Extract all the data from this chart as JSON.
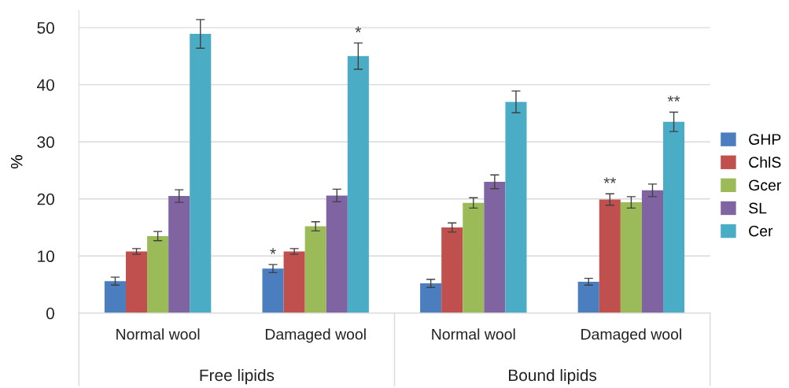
{
  "chart_data": {
    "type": "bar",
    "ylabel": "%",
    "categories": [
      "Normal wool",
      "Damaged wool",
      "Normal wool",
      "Damaged wool"
    ],
    "series": [
      {
        "name": "GHP",
        "color": "#4a7ebf",
        "values": [
          5.6,
          7.8,
          5.2,
          5.5
        ],
        "errors": [
          0.7,
          0.7,
          0.7,
          0.6
        ],
        "value_labels": [
          null,
          "*",
          null,
          null
        ]
      },
      {
        "name": "ChlS",
        "color": "#c0504d",
        "values": [
          10.8,
          10.8,
          15.0,
          19.9
        ],
        "errors": [
          0.5,
          0.5,
          0.8,
          1.0
        ],
        "value_labels": [
          null,
          null,
          null,
          "**"
        ]
      },
      {
        "name": "Gcer",
        "color": "#9bbb59",
        "values": [
          13.5,
          15.2,
          19.3,
          19.4
        ],
        "errors": [
          0.8,
          0.8,
          0.9,
          1.0
        ]
      },
      {
        "name": "SL",
        "color": "#8064a2",
        "values": [
          20.5,
          20.6,
          23.0,
          21.5
        ],
        "errors": [
          1.1,
          1.1,
          1.2,
          1.1
        ]
      },
      {
        "name": "Cer",
        "color": "#4bacc6",
        "values": [
          48.9,
          45.0,
          37.0,
          33.5
        ],
        "errors": [
          2.5,
          2.3,
          1.9,
          1.7
        ],
        "value_labels": [
          null,
          "*",
          null,
          "**"
        ]
      }
    ],
    "annotations": [
      "Free lipids",
      "Bound lipids"
    ],
    "ylim": [
      0,
      53
    ],
    "yticks": [
      0,
      10,
      20,
      30,
      40,
      50
    ],
    "grid": "y",
    "legend": "right"
  }
}
